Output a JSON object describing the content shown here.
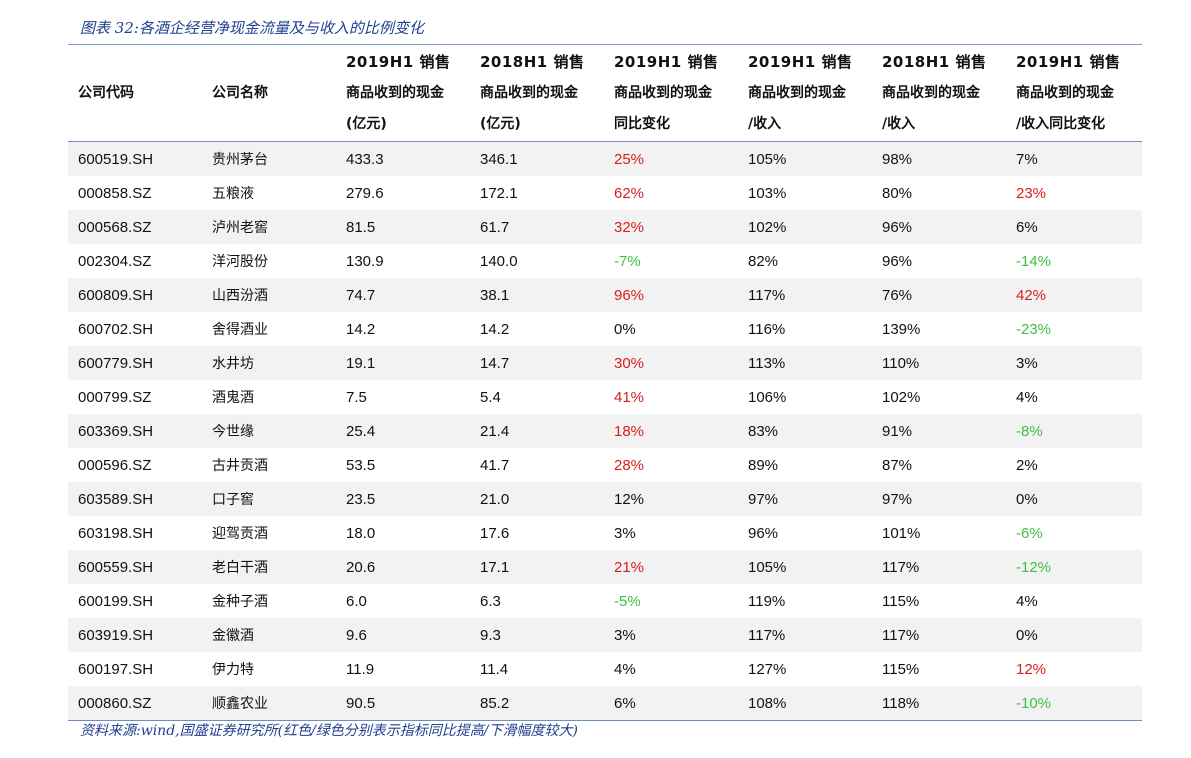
{
  "caption": "图表 32:各酒企经营净现金流量及与收入的比例变化",
  "headers": [
    {
      "l1": "",
      "l2": "公司代码",
      "l3": ""
    },
    {
      "l1": "",
      "l2": "公司名称",
      "l3": ""
    },
    {
      "l1": "2019H1 销售",
      "l2": "商品收到的现金",
      "l3": "(亿元)"
    },
    {
      "l1": "2018H1 销售",
      "l2": "商品收到的现金",
      "l3": "(亿元)"
    },
    {
      "l1": "2019H1 销售",
      "l2": "商品收到的现金",
      "l3": "同比变化"
    },
    {
      "l1": "2019H1 销售",
      "l2": "商品收到的现金",
      "l3": "/收入"
    },
    {
      "l1": "2018H1 销售",
      "l2": "商品收到的现金",
      "l3": "/收入"
    },
    {
      "l1": "2019H1 销售",
      "l2": "商品收到的现金",
      "l3": "/收入同比变化"
    }
  ],
  "colors": {
    "up": "#d81e1e",
    "down": "#3fbf3f",
    "neutral": "#111111"
  },
  "rows": [
    {
      "code": "600519.SH",
      "name": "贵州茅台",
      "cash2019": "433.3",
      "cash2018": "346.1",
      "yoy": "25%",
      "yoy_trend": "up",
      "ratio2019": "105%",
      "ratio2018": "98%",
      "ratio_chg": "7%",
      "ratio_trend": "neutral"
    },
    {
      "code": "000858.SZ",
      "name": "五粮液",
      "cash2019": "279.6",
      "cash2018": "172.1",
      "yoy": "62%",
      "yoy_trend": "up",
      "ratio2019": "103%",
      "ratio2018": "80%",
      "ratio_chg": "23%",
      "ratio_trend": "up"
    },
    {
      "code": "000568.SZ",
      "name": "泸州老窖",
      "cash2019": "81.5",
      "cash2018": "61.7",
      "yoy": "32%",
      "yoy_trend": "up",
      "ratio2019": "102%",
      "ratio2018": "96%",
      "ratio_chg": "6%",
      "ratio_trend": "neutral"
    },
    {
      "code": "002304.SZ",
      "name": "洋河股份",
      "cash2019": "130.9",
      "cash2018": "140.0",
      "yoy": "-7%",
      "yoy_trend": "down",
      "ratio2019": "82%",
      "ratio2018": "96%",
      "ratio_chg": "-14%",
      "ratio_trend": "down"
    },
    {
      "code": "600809.SH",
      "name": "山西汾酒",
      "cash2019": "74.7",
      "cash2018": "38.1",
      "yoy": "96%",
      "yoy_trend": "up",
      "ratio2019": "117%",
      "ratio2018": "76%",
      "ratio_chg": "42%",
      "ratio_trend": "up"
    },
    {
      "code": "600702.SH",
      "name": "舍得酒业",
      "cash2019": "14.2",
      "cash2018": "14.2",
      "yoy": "0%",
      "yoy_trend": "neutral",
      "ratio2019": "116%",
      "ratio2018": "139%",
      "ratio_chg": "-23%",
      "ratio_trend": "down"
    },
    {
      "code": "600779.SH",
      "name": "水井坊",
      "cash2019": "19.1",
      "cash2018": "14.7",
      "yoy": "30%",
      "yoy_trend": "up",
      "ratio2019": "113%",
      "ratio2018": "110%",
      "ratio_chg": "3%",
      "ratio_trend": "neutral"
    },
    {
      "code": "000799.SZ",
      "name": "酒鬼酒",
      "cash2019": "7.5",
      "cash2018": "5.4",
      "yoy": "41%",
      "yoy_trend": "up",
      "ratio2019": "106%",
      "ratio2018": "102%",
      "ratio_chg": "4%",
      "ratio_trend": "neutral"
    },
    {
      "code": "603369.SH",
      "name": "今世缘",
      "cash2019": "25.4",
      "cash2018": "21.4",
      "yoy": "18%",
      "yoy_trend": "up",
      "ratio2019": "83%",
      "ratio2018": "91%",
      "ratio_chg": "-8%",
      "ratio_trend": "down"
    },
    {
      "code": "000596.SZ",
      "name": "古井贡酒",
      "cash2019": "53.5",
      "cash2018": "41.7",
      "yoy": "28%",
      "yoy_trend": "up",
      "ratio2019": "89%",
      "ratio2018": "87%",
      "ratio_chg": "2%",
      "ratio_trend": "neutral"
    },
    {
      "code": "603589.SH",
      "name": "口子窖",
      "cash2019": "23.5",
      "cash2018": "21.0",
      "yoy": "12%",
      "yoy_trend": "neutral",
      "ratio2019": "97%",
      "ratio2018": "97%",
      "ratio_chg": "0%",
      "ratio_trend": "neutral"
    },
    {
      "code": "603198.SH",
      "name": "迎驾贡酒",
      "cash2019": "18.0",
      "cash2018": "17.6",
      "yoy": "3%",
      "yoy_trend": "neutral",
      "ratio2019": "96%",
      "ratio2018": "101%",
      "ratio_chg": "-6%",
      "ratio_trend": "down"
    },
    {
      "code": "600559.SH",
      "name": "老白干酒",
      "cash2019": "20.6",
      "cash2018": "17.1",
      "yoy": "21%",
      "yoy_trend": "up",
      "ratio2019": "105%",
      "ratio2018": "117%",
      "ratio_chg": "-12%",
      "ratio_trend": "down"
    },
    {
      "code": "600199.SH",
      "name": "金种子酒",
      "cash2019": "6.0",
      "cash2018": "6.3",
      "yoy": "-5%",
      "yoy_trend": "down",
      "ratio2019": "119%",
      "ratio2018": "115%",
      "ratio_chg": "4%",
      "ratio_trend": "neutral"
    },
    {
      "code": "603919.SH",
      "name": "金徽酒",
      "cash2019": "9.6",
      "cash2018": "9.3",
      "yoy": "3%",
      "yoy_trend": "neutral",
      "ratio2019": "117%",
      "ratio2018": "117%",
      "ratio_chg": "0%",
      "ratio_trend": "neutral"
    },
    {
      "code": "600197.SH",
      "name": "伊力特",
      "cash2019": "11.9",
      "cash2018": "11.4",
      "yoy": "4%",
      "yoy_trend": "neutral",
      "ratio2019": "127%",
      "ratio2018": "115%",
      "ratio_chg": "12%",
      "ratio_trend": "up"
    },
    {
      "code": "000860.SZ",
      "name": "顺鑫农业",
      "cash2019": "90.5",
      "cash2018": "85.2",
      "yoy": "6%",
      "yoy_trend": "neutral",
      "ratio2019": "108%",
      "ratio2018": "118%",
      "ratio_chg": "-10%",
      "ratio_trend": "down"
    }
  ],
  "source": "资料来源:wind,国盛证券研究所(红色/绿色分别表示指标同比提高/下滑幅度较大)"
}
